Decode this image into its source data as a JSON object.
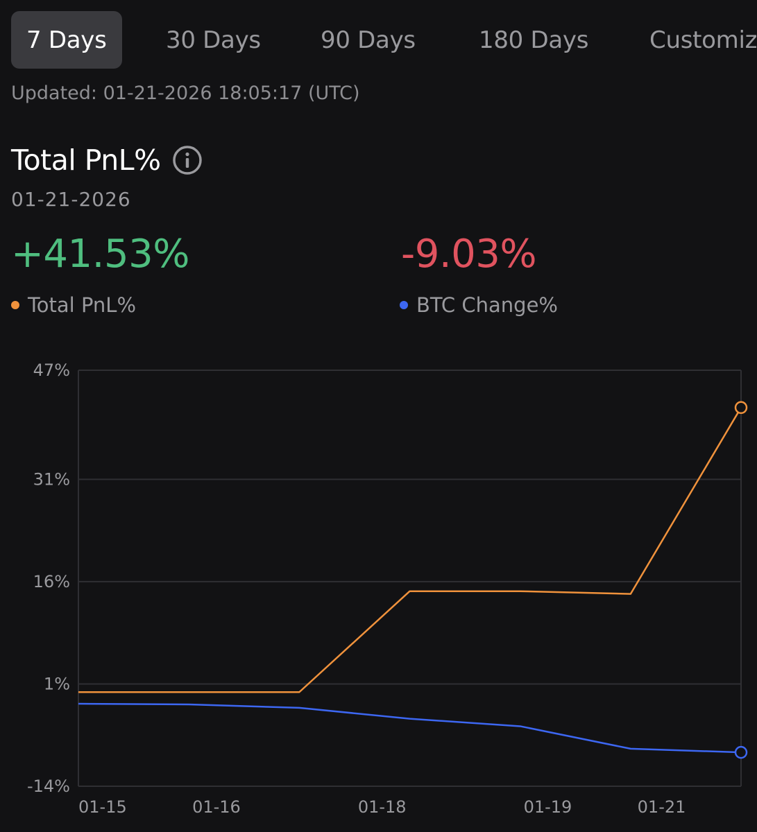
{
  "tabs": [
    {
      "label": "7 Days",
      "active": true
    },
    {
      "label": "30 Days",
      "active": false
    },
    {
      "label": "90 Days",
      "active": false
    },
    {
      "label": "180 Days",
      "active": false
    },
    {
      "label": "Customize",
      "active": false
    }
  ],
  "updated": "Updated: 01-21-2026 18:05:17 (UTC)",
  "title": "Total PnL%",
  "info_icon": "info-circle-icon",
  "date": "01-21-2026",
  "stats": {
    "pnl_value": "+41.53%",
    "btc_value": "-9.03%"
  },
  "legend": {
    "pnl_label": "Total PnL%",
    "btc_label": "BTC Change%"
  },
  "colors": {
    "pnl": "#F0923C",
    "btc": "#3D67F2",
    "positive": "#4FBE7F",
    "negative": "#E0535F"
  },
  "chart_data": {
    "type": "line",
    "x": [
      0,
      1,
      2,
      3,
      4,
      5,
      6
    ],
    "x_tick_labels": [
      "01-15",
      "01-16",
      "01-18",
      "01-19",
      "01-21"
    ],
    "x_tick_positions": [
      0,
      1.25,
      2.75,
      4.25,
      5.5
    ],
    "y_ticks": [
      -14,
      1,
      16,
      31,
      47
    ],
    "y_tick_labels": [
      "-14%",
      "1%",
      "16%",
      "31%",
      "47%"
    ],
    "ylim": [
      -14,
      47
    ],
    "grid": true,
    "series": [
      {
        "name": "Total PnL%",
        "color": "#F0923C",
        "values": [
          -0.2,
          -0.2,
          -0.2,
          14.6,
          14.6,
          14.2,
          41.53
        ]
      },
      {
        "name": "BTC Change%",
        "color": "#3D67F2",
        "values": [
          -1.9,
          -2.0,
          -2.5,
          -4.1,
          -5.2,
          -8.5,
          -9.03
        ]
      }
    ]
  }
}
